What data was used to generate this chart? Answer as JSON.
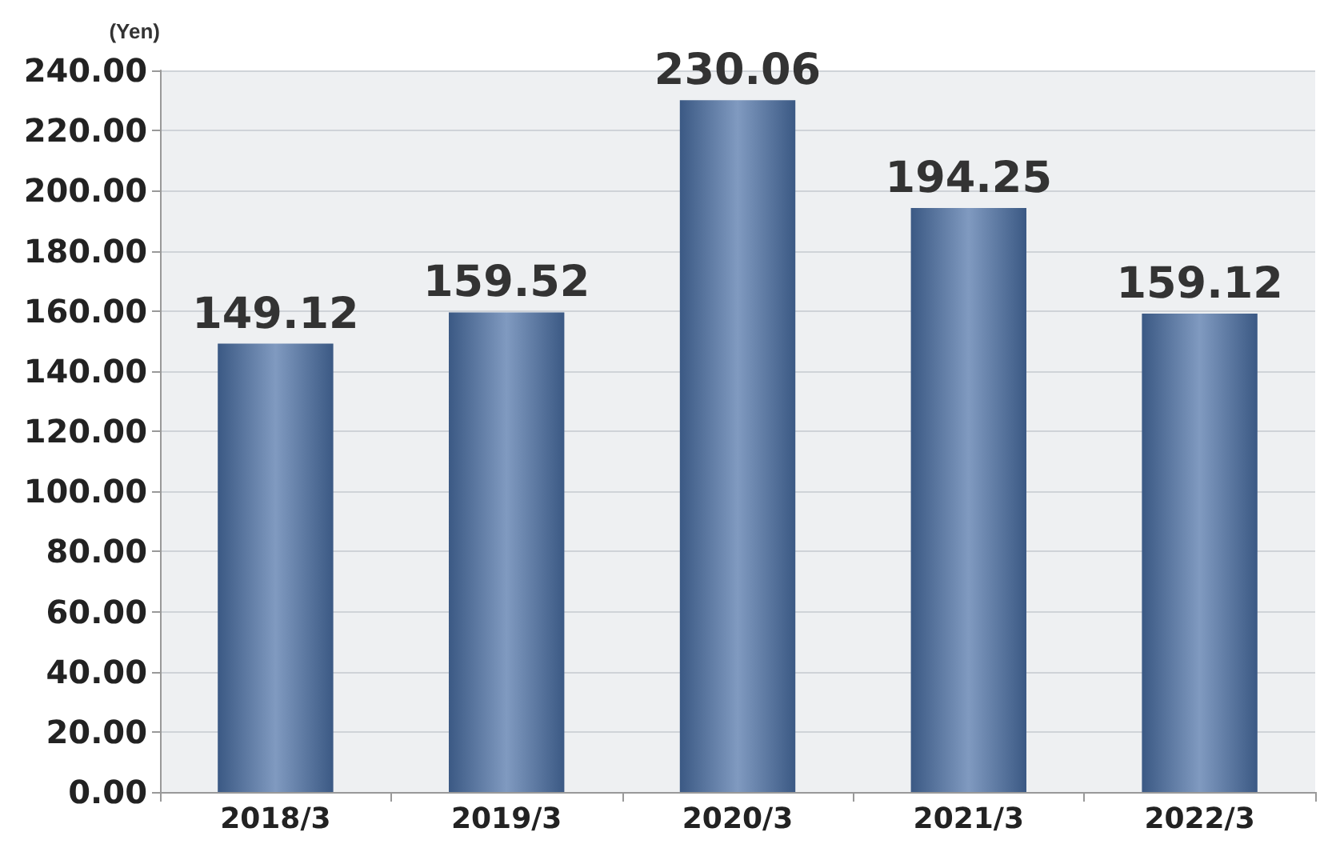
{
  "chart_data": {
    "type": "bar",
    "ylabel": "(Yen)",
    "categories": [
      "2018/3",
      "2019/3",
      "2020/3",
      "2021/3",
      "2022/3"
    ],
    "series": [
      {
        "color": "#4a6fa5",
        "values": [
          149.12,
          159.52,
          230.06,
          194.25,
          159.12
        ]
      }
    ],
    "ylim": [
      0,
      240
    ],
    "yticks": [
      {
        "value": 0,
        "label": "0.00"
      },
      {
        "value": 20,
        "label": "20.00"
      },
      {
        "value": 40,
        "label": "40.00"
      },
      {
        "value": 60,
        "label": "60.00"
      },
      {
        "value": 80,
        "label": "80.00"
      },
      {
        "value": 100,
        "label": "100.00"
      },
      {
        "value": 120,
        "label": "120.00"
      },
      {
        "value": 140,
        "label": "140.00"
      },
      {
        "value": 160,
        "label": "160.00"
      },
      {
        "value": 180,
        "label": "180.00"
      },
      {
        "value": 200,
        "label": "200.00"
      },
      {
        "value": 220,
        "label": "220.00"
      },
      {
        "value": 240,
        "label": "240.00"
      }
    ],
    "grid": true,
    "data_labels": true
  }
}
